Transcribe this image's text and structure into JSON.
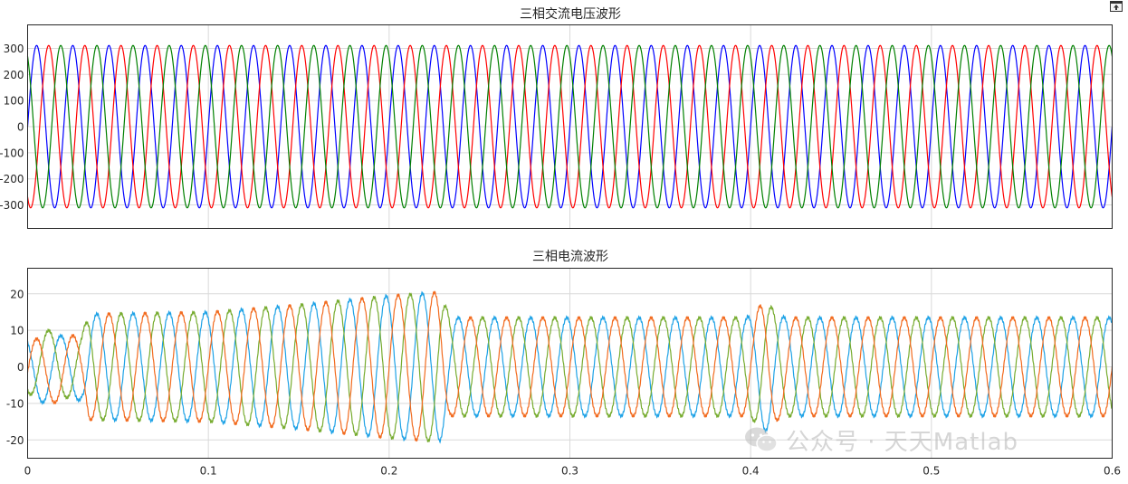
{
  "colors": {
    "voltage": [
      "#0000ff",
      "#ff0000",
      "#008000"
    ],
    "current": [
      "#f26b1f",
      "#77ac30",
      "#1ea2e6"
    ],
    "grid": "#d9d9d9",
    "axis": "#262626"
  },
  "icons": {
    "dock": "undock-figure-icon",
    "watermark": "wechat-logo-icon"
  },
  "watermark": {
    "text": "公众号 · 天天Matlab"
  },
  "chart_data": [
    {
      "type": "line",
      "title": "三相交流电压波形",
      "xlabel": "",
      "ylabel": "",
      "xlim": [
        0,
        0.6
      ],
      "ylim": [
        -390,
        390
      ],
      "xticks": [
        0,
        0.1,
        0.2,
        0.3,
        0.4,
        0.5,
        0.6
      ],
      "yticks": [
        -300,
        -200,
        -100,
        0,
        100,
        200,
        300
      ],
      "ytick_labels": [
        "-300",
        "-200",
        "-100",
        "0",
        "100",
        "200",
        "300"
      ],
      "x_tick_labels_shown": false,
      "grid": true,
      "frequency_hz": 50,
      "series": [
        {
          "amplitude": 311,
          "phase_deg": 0
        },
        {
          "amplitude": 311,
          "phase_deg": -120
        },
        {
          "amplitude": 311,
          "phase_deg": 120
        }
      ]
    },
    {
      "type": "line",
      "title": "三相电流波形",
      "xlabel": "",
      "ylabel": "",
      "xlim": [
        0,
        0.6
      ],
      "ylim": [
        -25,
        27
      ],
      "xticks": [
        0,
        0.1,
        0.2,
        0.3,
        0.4,
        0.5,
        0.6
      ],
      "xtick_labels": [
        "0",
        "0.1",
        "0.2",
        "0.3",
        "0.4",
        "0.5",
        "0.6"
      ],
      "yticks": [
        -20,
        -10,
        0,
        10,
        20
      ],
      "ytick_labels": [
        "-20",
        "-10",
        "0",
        "10",
        "20"
      ],
      "grid": true,
      "frequency_hz": 50,
      "amplitude_envelope": {
        "t": [
          0,
          0.03,
          0.034,
          0.1,
          0.15,
          0.2,
          0.228,
          0.234,
          0.3,
          0.4,
          0.5,
          0.6
        ],
        "amplitude": [
          9,
          9,
          14.5,
          15,
          17,
          19.5,
          20.5,
          13.5,
          13.5,
          13.5,
          13.5,
          13.5
        ]
      },
      "transients": [
        {
          "t_start": 0.0,
          "t_end": 0.034,
          "dc_offsets": [
            -1.5,
            1.5,
            -1
          ]
        },
        {
          "t_start": 0.4,
          "t_end": 0.425,
          "note_peaks": [
            18,
            15,
            -17
          ]
        }
      ],
      "series": [
        {
          "phase_deg": 0
        },
        {
          "phase_deg": -120
        },
        {
          "phase_deg": 120
        }
      ]
    }
  ]
}
